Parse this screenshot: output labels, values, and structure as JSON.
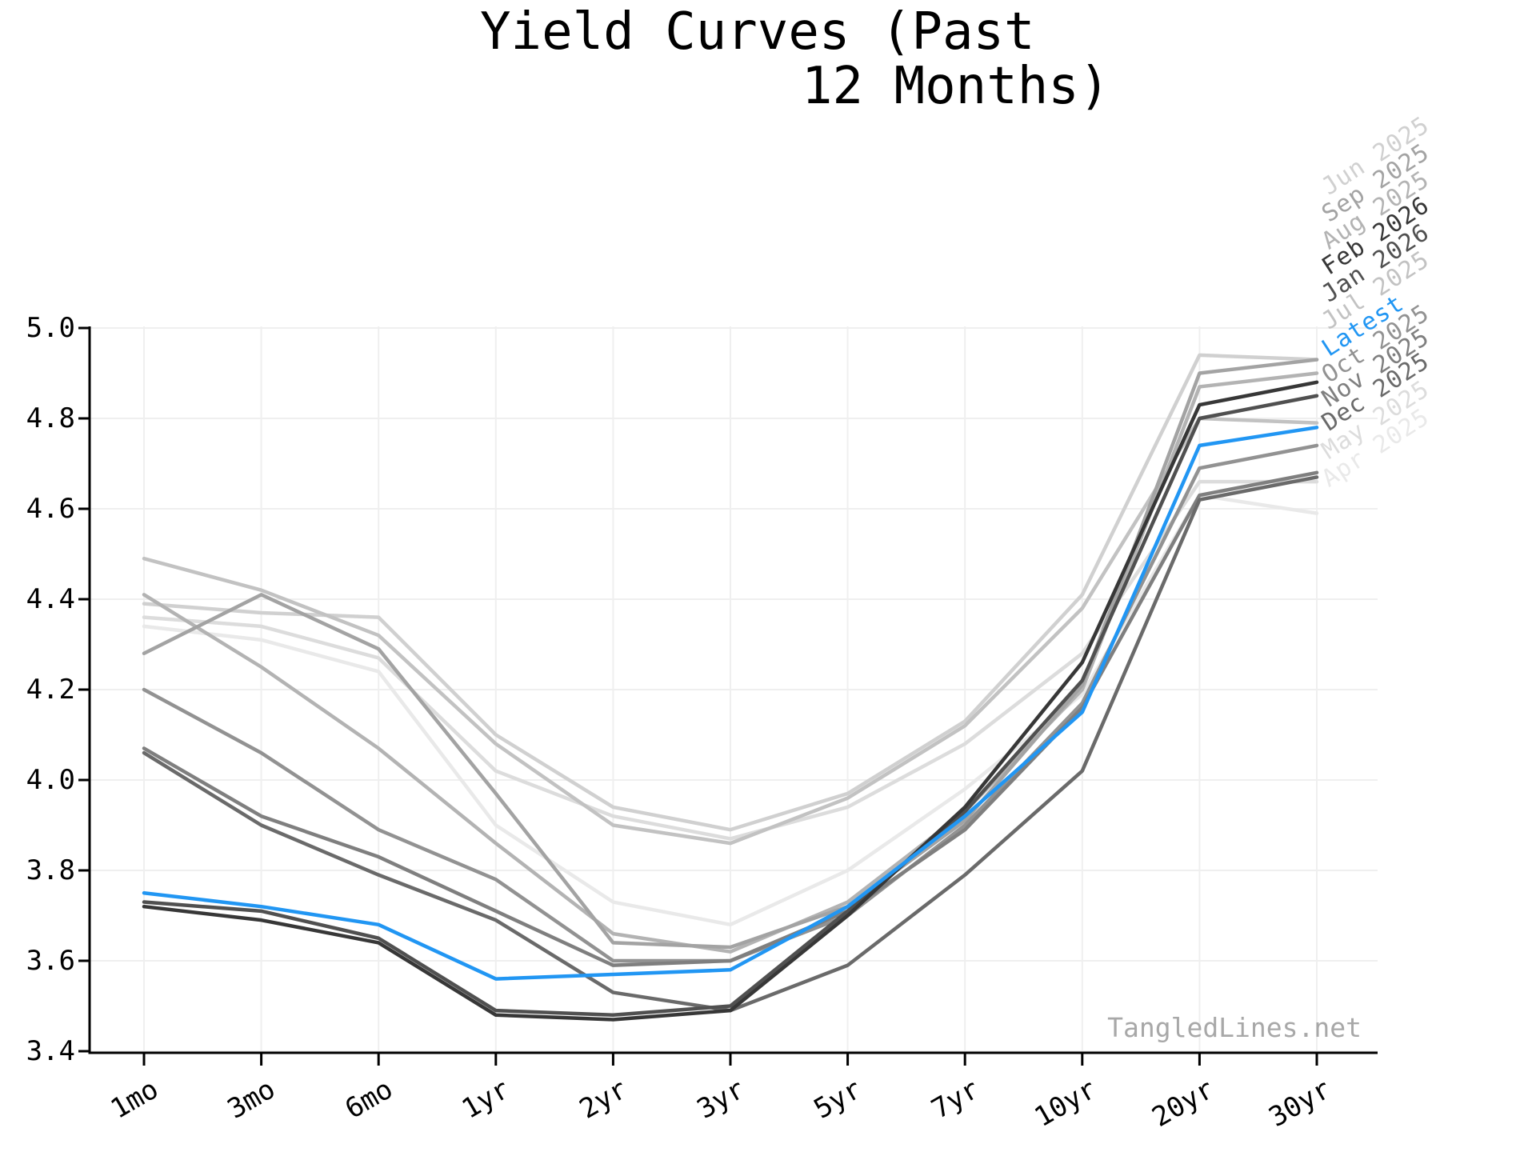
{
  "title": {
    "line1": "Yield Curves (Past",
    "line2": "12 Months)"
  },
  "watermark": "TangledLines.net",
  "chart_data": {
    "type": "line",
    "title": "Yield Curves (Past 12 Months)",
    "xlabel": "",
    "ylabel": "",
    "categories": [
      "1mo",
      "3mo",
      "6mo",
      "1yr",
      "2yr",
      "3yr",
      "5yr",
      "7yr",
      "10yr",
      "20yr",
      "30yr"
    ],
    "ylim": [
      3.4,
      5.0
    ],
    "ytick_labels": [
      "3.4",
      "3.6",
      "3.8",
      "4.0",
      "4.2",
      "4.4",
      "4.6",
      "4.8",
      "5.0"
    ],
    "grid": true,
    "grid_color": "#efefef",
    "axis_color": "#000000",
    "accent_color": "#2196f3",
    "legend_position": "right-rotated",
    "legend_order_top_to_bottom": [
      "Jun 2025",
      "Sep 2025",
      "Aug 2025",
      "Feb 2026",
      "Jan 2026",
      "Jul 2025",
      "Latest",
      "Oct 2025",
      "Nov 2025",
      "Dec 2025",
      "May 2025",
      "Apr 2025"
    ],
    "series": [
      {
        "name": "Apr 2025",
        "color": "#e9e9e9",
        "values": [
          4.34,
          4.31,
          4.24,
          3.9,
          3.73,
          3.68,
          3.8,
          3.98,
          4.19,
          4.63,
          4.59
        ]
      },
      {
        "name": "May 2025",
        "color": "#dcdcdc",
        "values": [
          4.36,
          4.34,
          4.27,
          4.02,
          3.92,
          3.87,
          3.94,
          4.08,
          4.28,
          4.66,
          4.66
        ]
      },
      {
        "name": "Jun 2025",
        "color": "#d0d0d0",
        "values": [
          4.39,
          4.37,
          4.36,
          4.1,
          3.94,
          3.89,
          3.97,
          4.13,
          4.41,
          4.94,
          4.93
        ]
      },
      {
        "name": "Jul 2025",
        "color": "#c2c2c2",
        "values": [
          4.49,
          4.42,
          4.32,
          4.08,
          3.9,
          3.86,
          3.96,
          4.12,
          4.38,
          4.8,
          4.79
        ]
      },
      {
        "name": "Aug 2025",
        "color": "#b3b3b3",
        "values": [
          4.41,
          4.25,
          4.07,
          3.86,
          3.66,
          3.62,
          3.73,
          3.93,
          4.2,
          4.87,
          4.9
        ]
      },
      {
        "name": "Sep 2025",
        "color": "#a3a3a3",
        "values": [
          4.28,
          4.41,
          4.29,
          3.97,
          3.64,
          3.63,
          3.72,
          3.91,
          4.21,
          4.9,
          4.93
        ]
      },
      {
        "name": "Oct 2025",
        "color": "#929292",
        "values": [
          4.2,
          4.06,
          3.89,
          3.78,
          3.6,
          3.6,
          3.7,
          3.9,
          4.17,
          4.69,
          4.74
        ]
      },
      {
        "name": "Nov 2025",
        "color": "#7f7f7f",
        "values": [
          4.07,
          3.92,
          3.83,
          3.71,
          3.59,
          3.6,
          3.71,
          3.89,
          4.16,
          4.63,
          4.68
        ]
      },
      {
        "name": "Dec 2025",
        "color": "#6a6a6a",
        "values": [
          4.06,
          3.9,
          3.79,
          3.69,
          3.53,
          3.49,
          3.59,
          3.79,
          4.02,
          4.62,
          4.67
        ]
      },
      {
        "name": "Jan 2026",
        "color": "#505050",
        "values": [
          3.73,
          3.71,
          3.65,
          3.49,
          3.48,
          3.5,
          3.71,
          3.93,
          4.22,
          4.8,
          4.85
        ]
      },
      {
        "name": "Feb 2026",
        "color": "#373737",
        "values": [
          3.72,
          3.69,
          3.64,
          3.48,
          3.47,
          3.49,
          3.7,
          3.94,
          4.26,
          4.83,
          4.88
        ]
      },
      {
        "name": "Latest",
        "color": "#2196f3",
        "values": [
          3.75,
          3.72,
          3.68,
          3.56,
          3.57,
          3.58,
          3.72,
          3.92,
          4.15,
          4.74,
          4.78
        ]
      }
    ]
  }
}
